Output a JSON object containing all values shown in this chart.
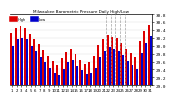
{
  "title": "Milwaukee Barometric Pressure Daily High/Low",
  "ylim": [
    29.0,
    30.8
  ],
  "ytick_labels": [
    "30.8",
    "30.6",
    "30.4",
    "30.2",
    "30.0",
    "29.8",
    "29.6",
    "29.4",
    "29.2",
    "29.0"
  ],
  "ytick_vals": [
    30.8,
    30.6,
    30.4,
    30.2,
    30.0,
    29.8,
    29.6,
    29.4,
    29.2,
    29.0
  ],
  "n_days": 31,
  "day_labels": [
    "1",
    "2",
    "3",
    "4",
    "5",
    "6",
    "7",
    "8",
    "9",
    "10",
    "11",
    "12",
    "13",
    "14",
    "15",
    "16",
    "17",
    "18",
    "19",
    "20",
    "21",
    "22",
    "23",
    "24",
    "25",
    "26",
    "27",
    "28",
    "29",
    "30",
    "31"
  ],
  "highs": [
    30.32,
    30.44,
    30.5,
    30.44,
    30.3,
    30.16,
    30.05,
    29.9,
    29.74,
    29.62,
    29.52,
    29.68,
    29.85,
    29.92,
    29.78,
    29.63,
    29.55,
    29.6,
    29.74,
    30.02,
    30.18,
    30.28,
    30.22,
    30.2,
    30.08,
    29.92,
    29.82,
    29.72,
    30.12,
    30.38,
    30.52
  ],
  "lows": [
    30.0,
    30.16,
    30.2,
    30.16,
    30.0,
    29.88,
    29.72,
    29.58,
    29.44,
    29.32,
    29.26,
    29.42,
    29.58,
    29.65,
    29.5,
    29.38,
    29.28,
    29.32,
    29.44,
    29.72,
    29.88,
    29.98,
    29.92,
    29.88,
    29.76,
    29.62,
    29.52,
    29.42,
    29.82,
    30.08,
    30.24
  ],
  "high_color": "#dd0000",
  "low_color": "#0000cc",
  "bg_color": "#ffffff",
  "grid_color": "#999999",
  "bar_width": 0.85,
  "dashed_lines": [
    21.5,
    22.5,
    23.5,
    24.5,
    25.5
  ],
  "ybaseline": 29.0,
  "legend_items": [
    {
      "label": "High",
      "color": "#dd0000"
    },
    {
      "label": "Low",
      "color": "#0000cc"
    }
  ]
}
